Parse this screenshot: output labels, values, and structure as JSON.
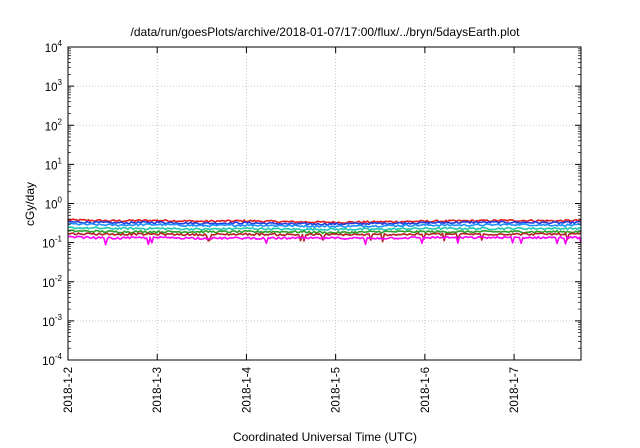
{
  "chart_data": {
    "type": "line",
    "title": "/data/run/goesPlots/archive/2018-01-07/17:00/flux/../bryn/5daysEarth.plot",
    "xlabel": "Coordinated Universal Time (UTC)",
    "ylabel": "cGy/day",
    "yscale": "log",
    "ylim": [
      0.0001,
      10000
    ],
    "y_ticks": [
      {
        "base": "10",
        "exp": "-4",
        "value": 0.0001
      },
      {
        "base": "10",
        "exp": "-3",
        "value": 0.001
      },
      {
        "base": "10",
        "exp": "-2",
        "value": 0.01
      },
      {
        "base": "10",
        "exp": "-1",
        "value": 0.1
      },
      {
        "base": "10",
        "exp": "0",
        "value": 1
      },
      {
        "base": "10",
        "exp": "1",
        "value": 10
      },
      {
        "base": "10",
        "exp": "2",
        "value": 100
      },
      {
        "base": "10",
        "exp": "3",
        "value": 1000
      },
      {
        "base": "10",
        "exp": "4",
        "value": 10000
      }
    ],
    "xlim": [
      "2018-01-02",
      "2018-01-07T18:00"
    ],
    "x_ticks": [
      "2018-1-2",
      "2018-1-3",
      "2018-1-4",
      "2018-1-5",
      "2018-1-6",
      "2018-1-7"
    ],
    "grid": true,
    "x": [
      "2018-01-02T00:00",
      "2018-01-02T12:00",
      "2018-01-03T00:00",
      "2018-01-03T12:00",
      "2018-01-04T00:00",
      "2018-01-04T12:00",
      "2018-01-05T00:00",
      "2018-01-05T12:00",
      "2018-01-06T00:00",
      "2018-01-06T12:00",
      "2018-01-07T00:00",
      "2018-01-07T12:00",
      "2018-01-07T18:00"
    ],
    "series": [
      {
        "color": "#e41a1c",
        "values": [
          0.38,
          0.36,
          0.37,
          0.35,
          0.36,
          0.34,
          0.33,
          0.34,
          0.35,
          0.36,
          0.37,
          0.36,
          0.37
        ]
      },
      {
        "color": "#1f3fe0",
        "values": [
          0.34,
          0.32,
          0.33,
          0.31,
          0.32,
          0.3,
          0.3,
          0.31,
          0.32,
          0.33,
          0.33,
          0.32,
          0.33
        ]
      },
      {
        "color": "#1e90ff",
        "values": [
          0.3,
          0.28,
          0.29,
          0.27,
          0.28,
          0.27,
          0.26,
          0.27,
          0.28,
          0.28,
          0.29,
          0.28,
          0.28
        ]
      },
      {
        "color": "#20c8b0",
        "values": [
          0.24,
          0.23,
          0.23,
          0.22,
          0.23,
          0.22,
          0.22,
          0.22,
          0.23,
          0.23,
          0.23,
          0.23,
          0.23
        ]
      },
      {
        "color": "#2ca02c",
        "values": [
          0.2,
          0.19,
          0.19,
          0.19,
          0.19,
          0.19,
          0.18,
          0.19,
          0.19,
          0.19,
          0.19,
          0.19,
          0.19
        ]
      },
      {
        "color": "#b22222",
        "values": [
          0.17,
          0.165,
          0.165,
          0.16,
          0.165,
          0.16,
          0.16,
          0.16,
          0.165,
          0.165,
          0.165,
          0.165,
          0.165
        ]
      },
      {
        "color": "#ff00ff",
        "values": [
          0.14,
          0.13,
          0.135,
          0.13,
          0.13,
          0.13,
          0.13,
          0.13,
          0.135,
          0.135,
          0.135,
          0.135,
          0.135
        ]
      }
    ]
  }
}
